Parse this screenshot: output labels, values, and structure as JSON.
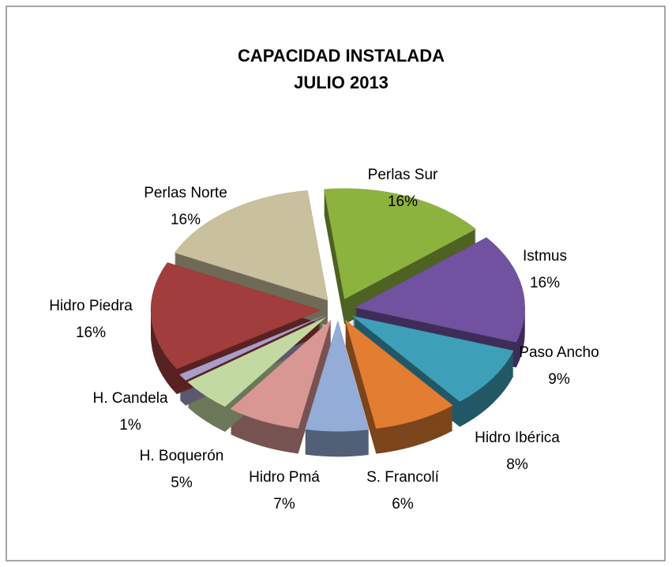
{
  "chart_data": {
    "type": "pie",
    "title": "CAPACIDAD INSTALADA",
    "subtitle": "JULIO 2013",
    "categories": [
      "Perlas Sur",
      "Istmus",
      "Paso Ancho",
      "Hidro Ibérica",
      "S. Francolí",
      "Hidro Pmá",
      "H. Boquerón",
      "H. Candela",
      "Hidro Piedra",
      "Perlas Norte"
    ],
    "values": [
      16,
      16,
      9,
      8,
      6,
      7,
      5,
      1,
      16,
      16
    ],
    "value_labels": [
      "16%",
      "16%",
      "9%",
      "8%",
      "6%",
      "7%",
      "5%",
      "1%",
      "16%",
      "16%"
    ],
    "colors": [
      "#8db33f",
      "#7152a0",
      "#3ea0b8",
      "#e27d32",
      "#93acd8",
      "#d99794",
      "#c2daa2",
      "#a99ecb",
      "#a23d3d",
      "#c9c09e"
    ]
  }
}
